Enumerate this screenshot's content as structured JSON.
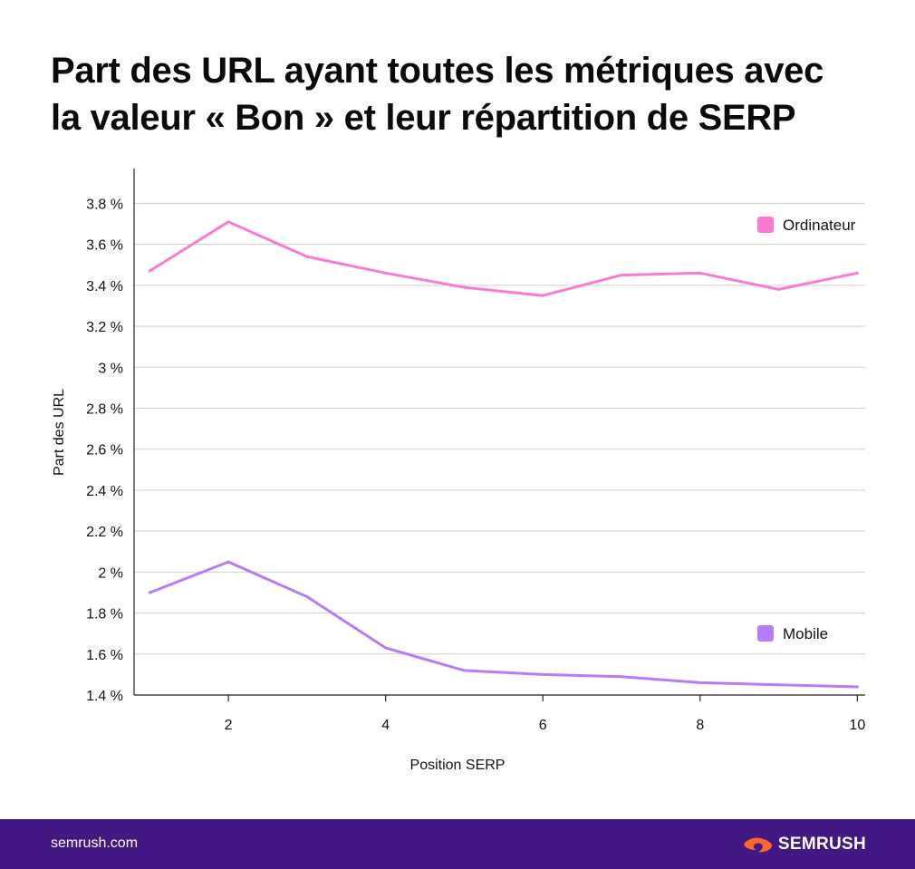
{
  "title": {
    "line1": "Part des URL ayant toutes les métriques avec",
    "line2": "la valeur « Bon » et leur répartition de SERP"
  },
  "colors": {
    "ordinateur": "#f97bd0",
    "mobile": "#b57ef6",
    "footer": "#421983",
    "brand_orange": "#ff642d"
  },
  "chart_data": {
    "type": "line",
    "xlabel": "Position SERP",
    "ylabel": "Part des URL",
    "xlim": [
      0.8,
      10.1
    ],
    "ylim": [
      1.4,
      3.97
    ],
    "x_ticks": [
      2,
      4,
      6,
      8,
      10
    ],
    "x_tick_labels": [
      "2",
      "4",
      "6",
      "8",
      "10"
    ],
    "y_ticks": [
      1.4,
      1.6,
      1.8,
      2.0,
      2.2,
      2.4,
      2.6,
      2.8,
      3.0,
      3.2,
      3.4,
      3.6,
      3.8
    ],
    "y_tick_labels": [
      "1.4 %",
      "1.6 %",
      "1.8 %",
      "2 %",
      "2.2 %",
      "2.4 %",
      "2.6 %",
      "2.8 %",
      "3 %",
      "3.2 %",
      "3.4 %",
      "3.6 %",
      "3.8 %"
    ],
    "grid": "horizontal",
    "legend_placement": "right",
    "series": [
      {
        "name": "Ordinateur",
        "color": "#f97bd0",
        "x": [
          1,
          2,
          3,
          4,
          5,
          6,
          7,
          8,
          9,
          10
        ],
        "values": [
          3.47,
          3.71,
          3.54,
          3.46,
          3.39,
          3.35,
          3.45,
          3.46,
          3.38,
          3.46
        ]
      },
      {
        "name": "Mobile",
        "color": "#b57ef6",
        "x": [
          1,
          2,
          3,
          4,
          5,
          6,
          7,
          8,
          9,
          10
        ],
        "values": [
          1.9,
          2.05,
          1.88,
          1.63,
          1.52,
          1.5,
          1.49,
          1.46,
          1.45,
          1.44
        ]
      }
    ]
  },
  "footer": {
    "url": "semrush.com",
    "brand": "SEMRUSH"
  }
}
